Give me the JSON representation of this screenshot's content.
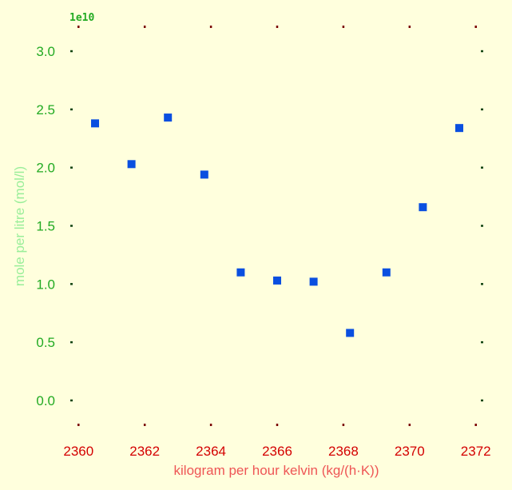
{
  "chart_data": {
    "type": "scatter",
    "title": "",
    "xlabel": "kilogram per hour kelvin (kg/(h·K))",
    "ylabel": "mole per litre (mol/l)",
    "y_offset_label": "1e10",
    "xlim": [
      2359.8,
      2372.2
    ],
    "ylim": [
      -0.22,
      3.22
    ],
    "x_ticks": [
      2360,
      2362,
      2364,
      2366,
      2368,
      2370,
      2372
    ],
    "x_tick_labels": [
      "2360",
      "2362",
      "2364",
      "2366",
      "2368",
      "2370",
      "2372"
    ],
    "y_ticks": [
      0.0,
      0.5,
      1.0,
      1.5,
      2.0,
      2.5,
      3.0
    ],
    "y_tick_labels": [
      "0.0",
      "0.5",
      "1.0",
      "1.5",
      "2.0",
      "2.5",
      "3.0"
    ],
    "grid": false,
    "marker": "square",
    "colors": {
      "marker": "#0a4fe0",
      "x_ticks": "#d40000",
      "y_ticks": "#22aa22",
      "xlabel": "#ee5555",
      "ylabel": "#99ee99",
      "background": "#ffffdd"
    },
    "series": [
      {
        "x": [
          2360.5,
          2361.6,
          2362.7,
          2363.8,
          2364.9,
          2366.0,
          2367.1,
          2368.2,
          2369.3,
          2370.4,
          2371.5
        ],
        "y": [
          2.38,
          2.03,
          2.43,
          1.94,
          1.1,
          1.03,
          1.02,
          0.58,
          1.1,
          1.66,
          2.34
        ]
      }
    ]
  }
}
